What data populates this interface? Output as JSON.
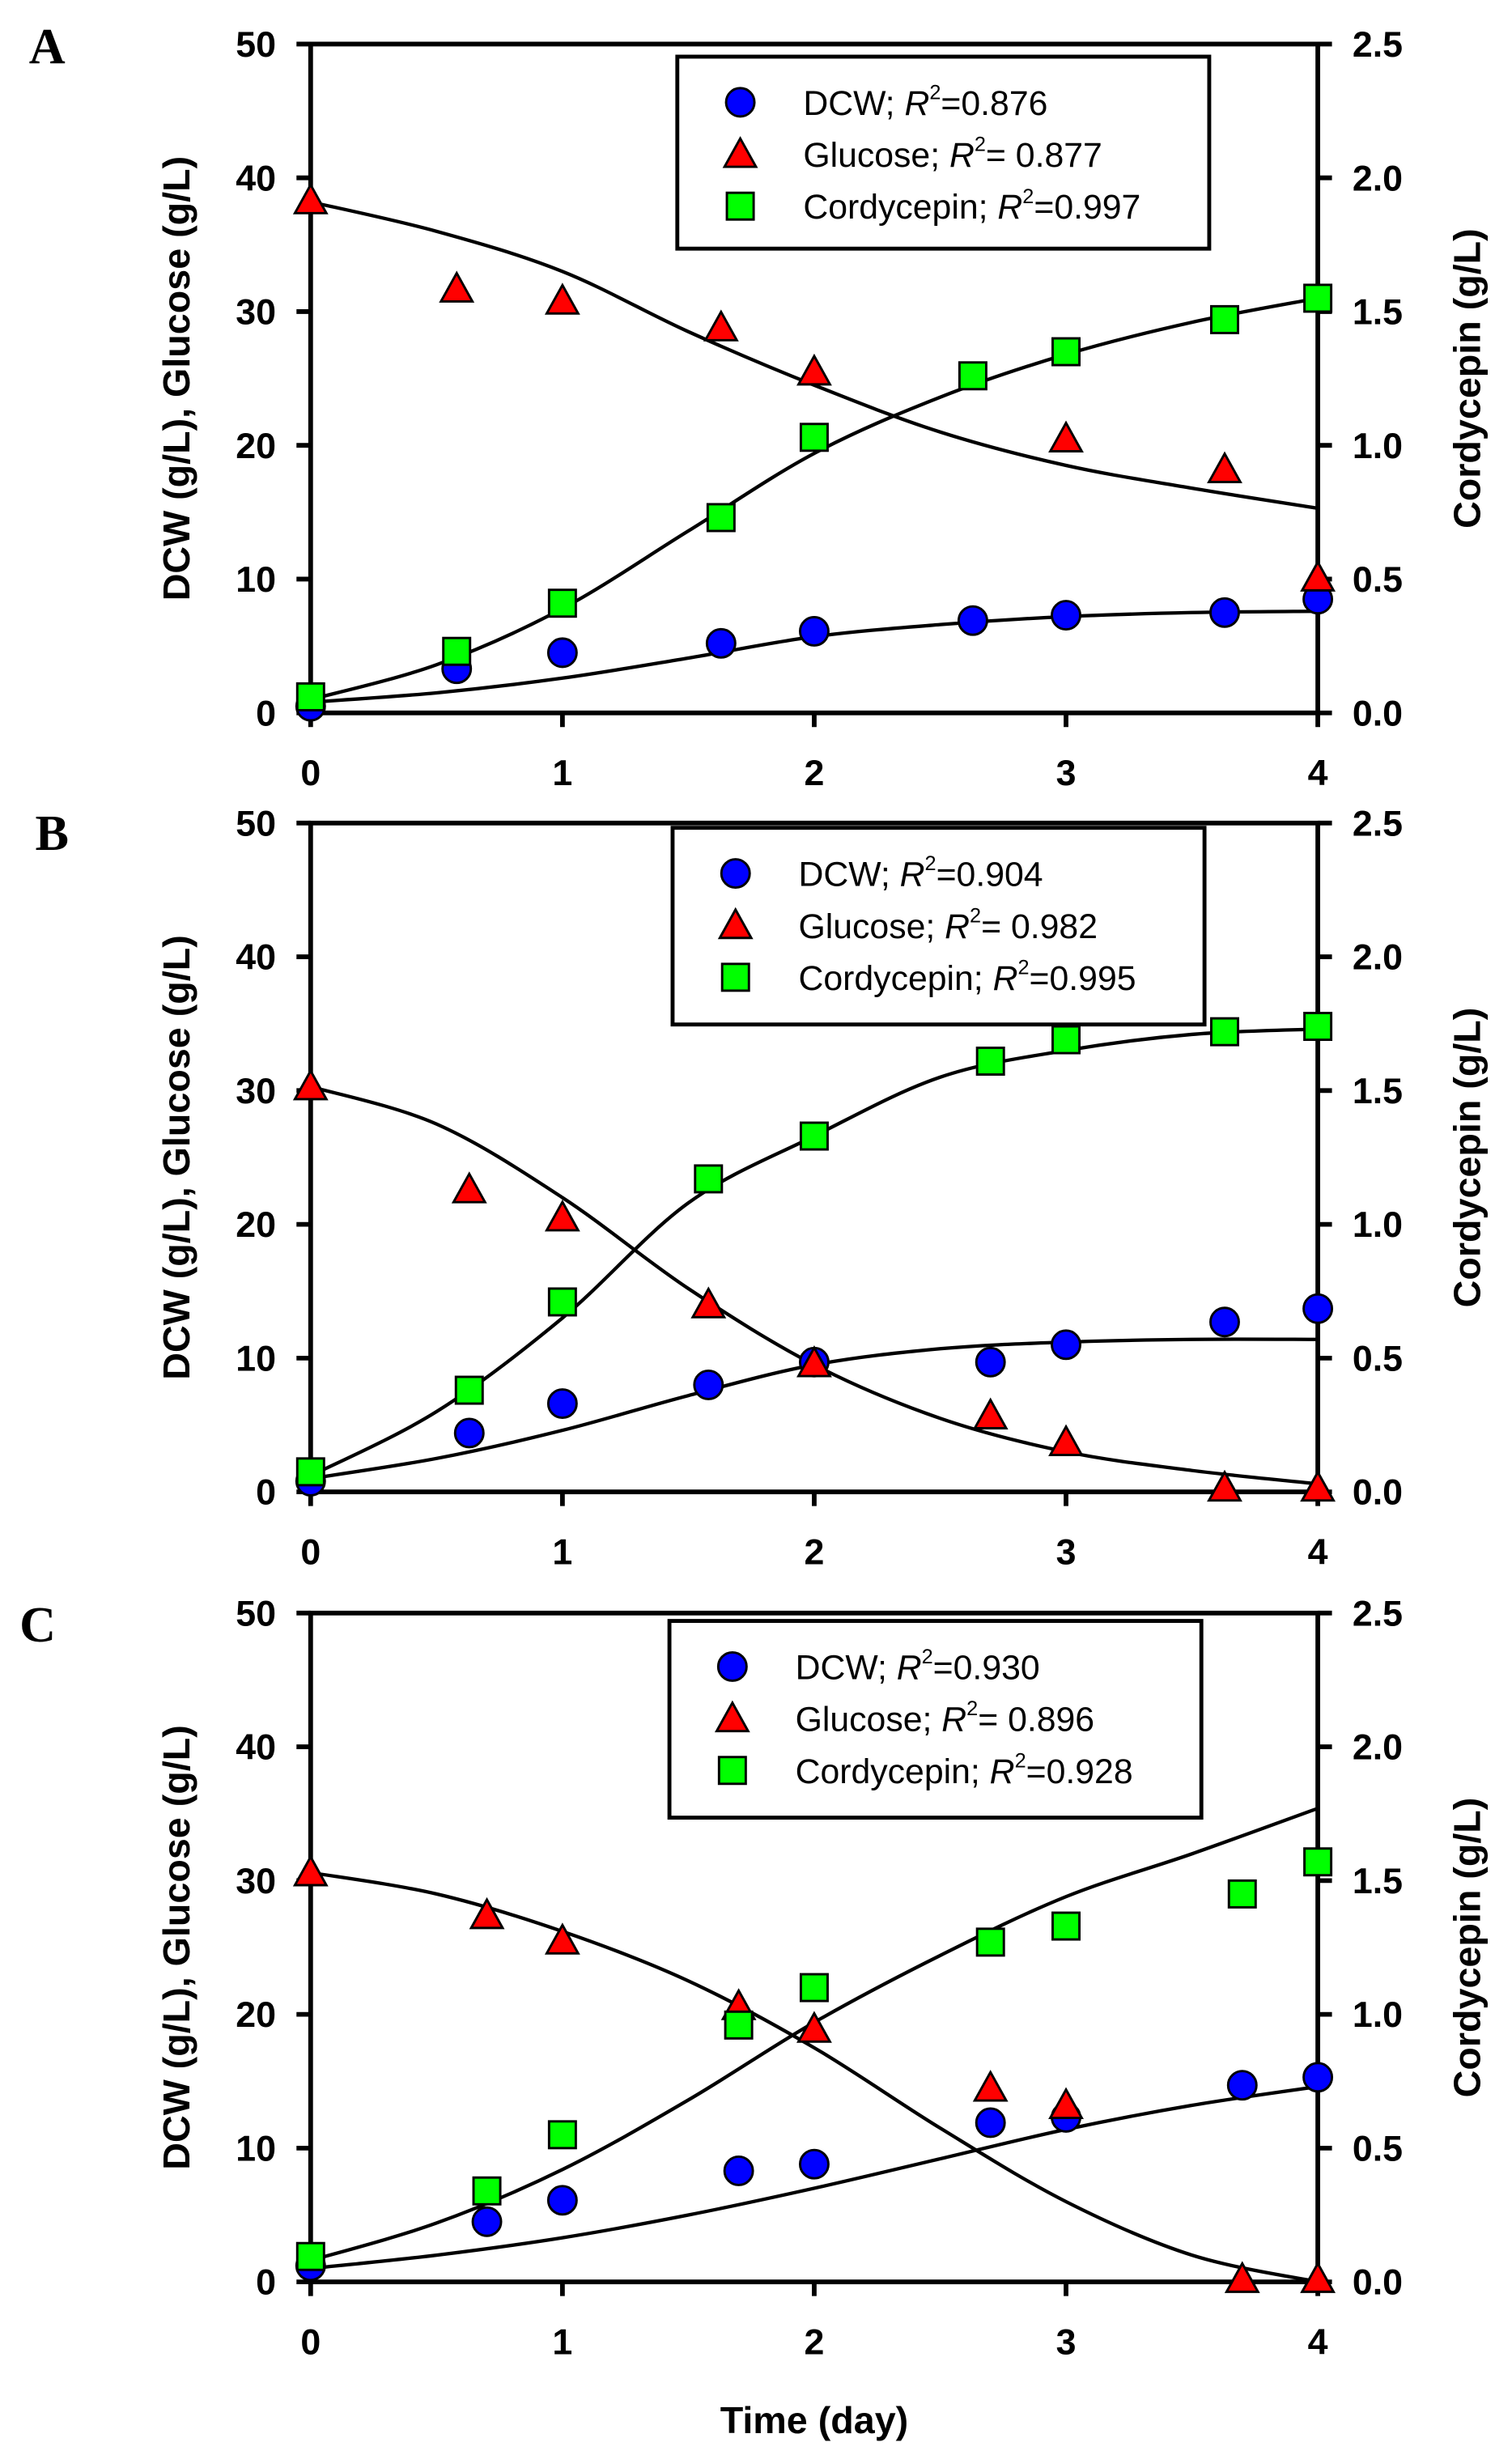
{
  "chart_data": [
    {
      "type": "scatter",
      "panel_label": "A",
      "xlabel": "",
      "ylabel": "DCW (g/L), Glucose (g/L)",
      "y2label": "Cordycepin (g/L)",
      "xlim": [
        0,
        4
      ],
      "ylim": [
        0,
        50
      ],
      "y2lim": [
        0,
        2.5
      ],
      "xticks": [
        "0",
        "1",
        "2",
        "3",
        "4"
      ],
      "yticks": [
        "0",
        "10",
        "20",
        "30",
        "40",
        "50"
      ],
      "y2ticks": [
        "0.0",
        "0.5",
        "1.0",
        "1.5",
        "2.0",
        "2.5"
      ],
      "legend_position": "top-right",
      "series": [
        {
          "name": "DCW",
          "legend": "DCW; ",
          "r2": "=0.876",
          "axis": "left",
          "marker": "circle",
          "color": "#0000ff",
          "x": [
            0,
            0.58,
            1,
            1.63,
            2,
            2.63,
            3,
            3.63,
            4
          ],
          "y": [
            0.5,
            3.3,
            4.5,
            5.2,
            6.1,
            6.9,
            7.3,
            7.5,
            8.5
          ],
          "fit": [
            0.8,
            1.5,
            2.6,
            4.1,
            5.7,
            6.6,
            7.2,
            7.5,
            7.6
          ]
        },
        {
          "name": "Glucose",
          "legend": "Glucose; ",
          "r2": "= 0.877",
          "axis": "left",
          "marker": "triangle",
          "color": "#ff0000",
          "x": [
            0,
            0.58,
            1,
            1.63,
            2,
            3,
            3.63,
            4
          ],
          "y": [
            38.3,
            31.7,
            30.8,
            28.8,
            25.5,
            20.5,
            18.2,
            10.1
          ],
          "fit": [
            38.2,
            36,
            33,
            28.5,
            24.5,
            21,
            18.5,
            16.8,
            15.3
          ]
        },
        {
          "name": "Cordycepin",
          "legend": "Cordycepin; ",
          "r2": "=0.997",
          "axis": "right",
          "marker": "square",
          "color": "#00ff00",
          "x": [
            0,
            0.58,
            1,
            1.63,
            2,
            2.63,
            3,
            3.63,
            4
          ],
          "y": [
            0.06,
            0.23,
            0.41,
            0.73,
            1.03,
            1.26,
            1.35,
            1.47,
            1.55
          ],
          "fit": [
            0.05,
            0.18,
            0.39,
            0.68,
            0.97,
            1.18,
            1.34,
            1.46,
            1.55
          ]
        }
      ],
      "fit_x": [
        0,
        0.5,
        1,
        1.5,
        2,
        2.5,
        3,
        3.5,
        4
      ]
    },
    {
      "type": "scatter",
      "panel_label": "B",
      "xlabel": "",
      "ylabel": "DCW (g/L), Glucose (g/L)",
      "y2label": "Cordycepin (g/L)",
      "xlim": [
        0,
        4
      ],
      "ylim": [
        0,
        50
      ],
      "y2lim": [
        0,
        2.5
      ],
      "xticks": [
        "0",
        "1",
        "2",
        "3",
        "4"
      ],
      "yticks": [
        "0",
        "10",
        "20",
        "30",
        "40",
        "50"
      ],
      "y2ticks": [
        "0.0",
        "0.5",
        "1.0",
        "1.5",
        "2.0",
        "2.5"
      ],
      "legend_position": "top-right",
      "series": [
        {
          "name": "DCW",
          "legend": "DCW; ",
          "r2": "=0.904",
          "axis": "left",
          "marker": "circle",
          "color": "#0000ff",
          "x": [
            0,
            0.63,
            1,
            1.58,
            2,
            2.7,
            3,
            3.63,
            4
          ],
          "y": [
            0.8,
            4.4,
            6.6,
            8.0,
            9.7,
            9.7,
            11,
            12.7,
            13.7
          ],
          "fit": [
            1,
            2.5,
            4.6,
            7.2,
            9.5,
            10.7,
            11.2,
            11.4,
            11.4
          ]
        },
        {
          "name": "Glucose",
          "legend": "Glucose; ",
          "r2": "= 0.982",
          "axis": "left",
          "marker": "triangle",
          "color": "#ff0000",
          "x": [
            0,
            0.63,
            1,
            1.58,
            2,
            2.7,
            3,
            3.63,
            4
          ],
          "y": [
            30.3,
            22.6,
            20.5,
            14,
            9.6,
            5.7,
            3.7,
            0.3,
            0.3
          ],
          "fit": [
            30.3,
            27.5,
            22,
            15.2,
            9.5,
            5.5,
            3,
            1.6,
            0.6
          ]
        },
        {
          "name": "Cordycepin",
          "legend": "Cordycepin; ",
          "r2": "=0.995",
          "axis": "right",
          "marker": "square",
          "color": "#00ff00",
          "x": [
            0,
            0.63,
            1,
            1.58,
            2,
            2.7,
            3,
            3.63,
            4
          ],
          "y": [
            0.075,
            0.38,
            0.71,
            1.17,
            1.33,
            1.61,
            1.69,
            1.72,
            1.74
          ],
          "fit": [
            0.06,
            0.3,
            0.65,
            1.08,
            1.33,
            1.55,
            1.65,
            1.71,
            1.73
          ]
        }
      ],
      "fit_x": [
        0,
        0.5,
        1,
        1.5,
        2,
        2.5,
        3,
        3.5,
        4
      ]
    },
    {
      "type": "scatter",
      "panel_label": "C",
      "xlabel": "Time (day)",
      "ylabel": "DCW (g/L), Glucose (g/L)",
      "y2label": "Cordycepin (g/L)",
      "xlim": [
        0,
        4
      ],
      "ylim": [
        0,
        50
      ],
      "y2lim": [
        0,
        2.5
      ],
      "xticks": [
        "0",
        "1",
        "2",
        "3",
        "4"
      ],
      "yticks": [
        "0",
        "10",
        "20",
        "30",
        "40",
        "50"
      ],
      "y2ticks": [
        "0.0",
        "0.5",
        "1.0",
        "1.5",
        "2.0",
        "2.5"
      ],
      "legend_position": "top-right",
      "series": [
        {
          "name": "DCW",
          "legend": "DCW; ",
          "r2": "=0.930",
          "axis": "left",
          "marker": "circle",
          "color": "#0000ff",
          "x": [
            0,
            0.7,
            1,
            1.7,
            2,
            2.7,
            3,
            3.7,
            4
          ],
          "y": [
            1.2,
            4.5,
            6.1,
            8.3,
            8.8,
            11.9,
            12.3,
            14.7,
            15.3
          ],
          "fit": [
            1,
            2,
            3.3,
            5,
            7,
            9.2,
            11.4,
            13.2,
            14.6
          ]
        },
        {
          "name": "Glucose",
          "legend": "Glucose; ",
          "r2": "= 0.896",
          "axis": "left",
          "marker": "triangle",
          "color": "#ff0000",
          "x": [
            0,
            0.7,
            1,
            1.7,
            2,
            2.7,
            3,
            3.7,
            4
          ],
          "y": [
            30.6,
            27.4,
            25.5,
            20.6,
            18.9,
            14.5,
            13.2,
            0.2,
            0.2
          ],
          "fit": [
            30.6,
            29,
            26.2,
            22.5,
            17.5,
            11.5,
            6,
            2,
            0
          ]
        },
        {
          "name": "Cordycepin",
          "legend": "Cordycepin; ",
          "r2": "=0.928",
          "axis": "right",
          "marker": "square",
          "color": "#00ff00",
          "x": [
            0,
            0.7,
            1,
            1.7,
            2,
            2.7,
            3,
            3.7,
            4
          ],
          "y": [
            0.095,
            0.34,
            0.55,
            0.96,
            1.1,
            1.27,
            1.33,
            1.45,
            1.57
          ],
          "fit": [
            0.08,
            0.22,
            0.42,
            0.68,
            0.97,
            1.22,
            1.44,
            1.6,
            1.77
          ]
        }
      ],
      "fit_x": [
        0,
        0.5,
        1,
        1.5,
        2,
        2.5,
        3,
        3.5,
        4
      ]
    }
  ]
}
